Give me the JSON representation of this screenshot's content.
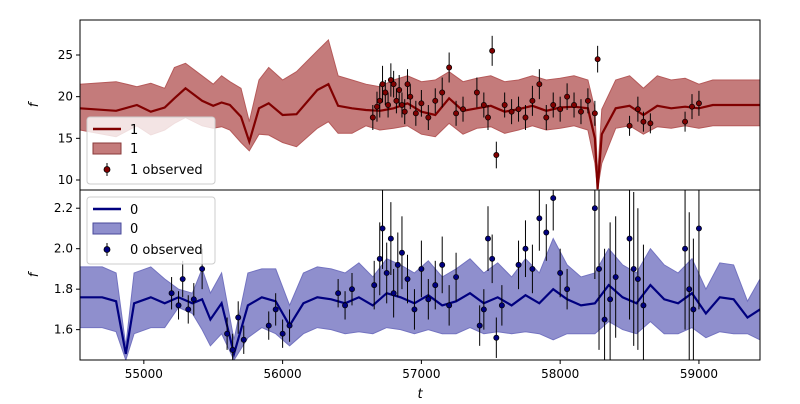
{
  "colors": {
    "series_top_line": "#800000",
    "series_top_band": "#b55a5a",
    "series_bottom_line": "#00007f",
    "series_bottom_band": "#7373c0",
    "errorbar": "#000000"
  },
  "chart_data": [
    {
      "type": "line",
      "panel": "top",
      "ylabel": "f",
      "xlim": [
        54540,
        59440
      ],
      "ylim": [
        8.8,
        29.2
      ],
      "yticks": [
        10,
        15,
        20,
        25
      ],
      "legend": {
        "placement": "lower-left",
        "entries": [
          {
            "label": "1",
            "kind": "line"
          },
          {
            "label": "1",
            "kind": "band"
          },
          {
            "label": "1 observed",
            "kind": "errorbar"
          }
        ]
      },
      "mean_line": {
        "x": [
          54540,
          54800,
          54950,
          55050,
          55150,
          55220,
          55300,
          55420,
          55500,
          55560,
          55620,
          55700,
          55760,
          55830,
          55900,
          56000,
          56100,
          56250,
          56330,
          56400,
          56500,
          56600,
          56700,
          56800,
          56900,
          57000,
          57100,
          57200,
          57300,
          57400,
          57500,
          57600,
          57700,
          57800,
          57900,
          58000,
          58100,
          58200,
          58250,
          58270,
          58300,
          58400,
          58500,
          58600,
          58700,
          58800,
          58900,
          59000,
          59100,
          59440
        ],
        "y": [
          18.6,
          18.3,
          19.0,
          18.2,
          18.7,
          19.8,
          21.0,
          19.5,
          18.9,
          19.3,
          19.0,
          17.6,
          14.6,
          18.6,
          19.2,
          17.8,
          17.9,
          20.8,
          21.5,
          18.9,
          18.6,
          18.4,
          18.3,
          18.6,
          19.2,
          18.2,
          17.8,
          19.8,
          18.3,
          18.6,
          18.9,
          18.2,
          18.5,
          18.9,
          18.3,
          18.7,
          18.8,
          18.6,
          15.0,
          8.9,
          15.5,
          18.6,
          18.9,
          17.8,
          18.9,
          18.6,
          18.8,
          18.6,
          19.0,
          19.0
        ]
      },
      "band": {
        "x": [
          54540,
          54800,
          54950,
          55050,
          55150,
          55220,
          55300,
          55420,
          55500,
          55560,
          55620,
          55700,
          55760,
          55830,
          55900,
          56000,
          56100,
          56250,
          56330,
          56400,
          56500,
          56600,
          56700,
          56800,
          56900,
          57000,
          57100,
          57200,
          57300,
          57400,
          57500,
          57600,
          57700,
          57800,
          57900,
          58000,
          58100,
          58200,
          58250,
          58270,
          58300,
          58400,
          58500,
          58600,
          58700,
          58800,
          58900,
          59000,
          59100,
          59440
        ],
        "upper": [
          21.5,
          21.8,
          21.2,
          21.6,
          21.0,
          23.5,
          24.0,
          22.5,
          21.5,
          22.5,
          21.8,
          21.0,
          17.0,
          22.0,
          23.5,
          22.0,
          23.0,
          25.5,
          26.8,
          22.5,
          22.0,
          21.5,
          21.2,
          22.0,
          22.5,
          21.8,
          22.0,
          23.0,
          21.8,
          22.2,
          22.5,
          21.8,
          22.0,
          22.5,
          22.0,
          22.2,
          22.5,
          22.0,
          18.5,
          10.5,
          18.5,
          22.0,
          22.5,
          21.0,
          22.5,
          22.0,
          22.2,
          21.5,
          22.0,
          22.0
        ],
        "lower": [
          16.0,
          15.2,
          16.5,
          15.4,
          16.0,
          16.8,
          17.5,
          16.5,
          16.2,
          16.4,
          16.0,
          14.5,
          13.5,
          15.5,
          15.4,
          14.5,
          14.0,
          16.2,
          17.0,
          15.6,
          15.6,
          16.5,
          16.0,
          16.2,
          16.5,
          15.5,
          15.2,
          16.8,
          15.5,
          16.2,
          16.4,
          15.6,
          16.0,
          16.5,
          16.0,
          16.2,
          16.5,
          16.0,
          12.0,
          8.9,
          12.0,
          16.2,
          16.5,
          15.5,
          16.4,
          16.2,
          16.5,
          16.2,
          16.5,
          16.5
        ]
      },
      "observed": {
        "x": [
          56650,
          56680,
          56700,
          56720,
          56740,
          56760,
          56780,
          56800,
          56820,
          56840,
          56860,
          56880,
          56900,
          56920,
          56960,
          57000,
          57050,
          57100,
          57150,
          57200,
          57250,
          57300,
          57400,
          57450,
          57480,
          57510,
          57540,
          57600,
          57650,
          57700,
          57750,
          57800,
          57850,
          57900,
          57950,
          58000,
          58050,
          58100,
          58150,
          58200,
          58250,
          58270,
          58500,
          58560,
          58600,
          58650,
          58900,
          58950,
          59000
        ],
        "y": [
          17.5,
          18.8,
          19.5,
          21.5,
          20.5,
          19.0,
          22.0,
          21.5,
          19.5,
          20.8,
          19.0,
          18.2,
          21.5,
          20.0,
          18.0,
          19.2,
          17.5,
          19.5,
          20.5,
          23.5,
          18.0,
          18.5,
          20.5,
          19.0,
          17.5,
          25.5,
          13.0,
          19.0,
          18.2,
          18.5,
          17.5,
          19.5,
          21.5,
          17.5,
          19.0,
          18.5,
          20.0,
          19.0,
          18.2,
          19.5,
          18.0,
          24.5,
          16.5,
          18.5,
          17.0,
          16.8,
          17.0,
          18.8,
          19.2
        ],
        "err": [
          1.5,
          1.8,
          2.0,
          2.2,
          1.5,
          1.5,
          2.0,
          1.6,
          1.5,
          1.8,
          1.5,
          1.5,
          1.8,
          1.5,
          1.5,
          1.6,
          1.5,
          1.5,
          1.8,
          1.8,
          1.5,
          1.5,
          1.8,
          1.5,
          1.5,
          1.8,
          1.6,
          1.5,
          1.5,
          1.5,
          1.5,
          1.8,
          1.8,
          1.5,
          1.5,
          1.5,
          1.6,
          1.5,
          1.5,
          1.5,
          1.5,
          1.6,
          1.2,
          1.5,
          1.2,
          1.2,
          1.2,
          1.5,
          1.5
        ]
      }
    },
    {
      "type": "line",
      "panel": "bottom",
      "xlabel": "t",
      "ylabel": "f",
      "xlim": [
        54540,
        59440
      ],
      "ylim": [
        1.45,
        2.29
      ],
      "yticks": [
        1.6,
        1.8,
        2.0,
        2.2
      ],
      "xticks": [
        55000,
        56000,
        57000,
        58000,
        59000
      ],
      "legend": {
        "placement": "upper-left",
        "entries": [
          {
            "label": "0",
            "kind": "line"
          },
          {
            "label": "0",
            "kind": "band"
          },
          {
            "label": "0 observed",
            "kind": "errorbar"
          }
        ]
      },
      "mean_line": {
        "x": [
          54540,
          54700,
          54800,
          54870,
          54930,
          55050,
          55150,
          55250,
          55350,
          55420,
          55480,
          55560,
          55650,
          55750,
          55850,
          55950,
          56050,
          56150,
          56250,
          56350,
          56450,
          56550,
          56650,
          56750,
          56850,
          56950,
          57050,
          57150,
          57250,
          57350,
          57450,
          57550,
          57650,
          57750,
          57850,
          57950,
          58050,
          58150,
          58250,
          58350,
          58450,
          58550,
          58650,
          58750,
          58850,
          58950,
          59050,
          59150,
          59250,
          59350,
          59440
        ],
        "y": [
          1.76,
          1.76,
          1.74,
          1.48,
          1.73,
          1.76,
          1.73,
          1.76,
          1.73,
          1.75,
          1.65,
          1.73,
          1.48,
          1.72,
          1.76,
          1.74,
          1.62,
          1.73,
          1.76,
          1.75,
          1.73,
          1.76,
          1.72,
          1.78,
          1.76,
          1.73,
          1.77,
          1.72,
          1.74,
          1.78,
          1.73,
          1.76,
          1.72,
          1.77,
          1.73,
          1.8,
          1.75,
          1.72,
          1.73,
          1.82,
          1.76,
          1.73,
          1.82,
          1.75,
          1.73,
          1.78,
          1.68,
          1.76,
          1.75,
          1.66,
          1.7
        ]
      },
      "band": {
        "x": [
          54540,
          54700,
          54800,
          54870,
          54930,
          55050,
          55150,
          55250,
          55350,
          55420,
          55480,
          55560,
          55650,
          55750,
          55850,
          55950,
          56050,
          56150,
          56250,
          56350,
          56450,
          56550,
          56650,
          56750,
          56850,
          56950,
          57050,
          57150,
          57250,
          57350,
          57450,
          57550,
          57650,
          57750,
          57850,
          57950,
          58050,
          58150,
          58250,
          58350,
          58450,
          58550,
          58650,
          58750,
          58850,
          58950,
          59050,
          59150,
          59250,
          59350,
          59440
        ],
        "upper": [
          1.91,
          1.91,
          1.88,
          1.52,
          1.88,
          1.91,
          1.85,
          1.8,
          1.78,
          1.9,
          1.78,
          1.88,
          1.55,
          1.88,
          1.9,
          1.9,
          1.72,
          1.88,
          1.91,
          1.9,
          1.88,
          1.93,
          1.86,
          1.95,
          1.92,
          1.88,
          1.94,
          1.86,
          1.9,
          1.95,
          1.88,
          1.93,
          1.86,
          1.95,
          1.88,
          2.05,
          1.92,
          1.86,
          1.88,
          2.0,
          1.92,
          1.88,
          2.0,
          1.92,
          1.88,
          1.95,
          1.8,
          1.93,
          1.92,
          1.74,
          1.85
        ],
        "lower": [
          1.61,
          1.61,
          1.59,
          1.45,
          1.58,
          1.61,
          1.61,
          1.71,
          1.68,
          1.6,
          1.52,
          1.58,
          1.45,
          1.56,
          1.61,
          1.58,
          1.52,
          1.58,
          1.61,
          1.6,
          1.58,
          1.59,
          1.58,
          1.61,
          1.6,
          1.58,
          1.6,
          1.58,
          1.58,
          1.61,
          1.58,
          1.59,
          1.58,
          1.59,
          1.58,
          1.55,
          1.58,
          1.58,
          1.58,
          1.64,
          1.6,
          1.58,
          1.64,
          1.58,
          1.58,
          1.61,
          1.56,
          1.59,
          1.58,
          1.58,
          1.55
        ]
      },
      "observed": {
        "x": [
          55200,
          55250,
          55280,
          55320,
          55360,
          55420,
          55600,
          55640,
          55680,
          55720,
          55900,
          55950,
          56000,
          56050,
          56400,
          56450,
          56500,
          56660,
          56700,
          56720,
          56750,
          56780,
          56800,
          56830,
          56860,
          56900,
          56950,
          57000,
          57050,
          57100,
          57150,
          57200,
          57250,
          57420,
          57450,
          57480,
          57510,
          57540,
          57580,
          57700,
          57750,
          57800,
          57850,
          57900,
          57950,
          58000,
          58050,
          58250,
          58280,
          58320,
          58360,
          58400,
          58500,
          58530,
          58560,
          58600,
          58900,
          58930,
          58960,
          59000
        ],
        "y": [
          1.78,
          1.72,
          1.85,
          1.7,
          1.75,
          1.9,
          1.58,
          1.5,
          1.66,
          1.55,
          1.62,
          1.7,
          1.58,
          1.62,
          1.78,
          1.72,
          1.8,
          1.82,
          1.95,
          2.1,
          1.88,
          2.05,
          1.78,
          1.92,
          1.98,
          1.85,
          1.7,
          1.9,
          1.75,
          1.82,
          1.92,
          1.72,
          1.86,
          1.62,
          1.7,
          2.05,
          1.95,
          1.56,
          1.72,
          1.92,
          2.0,
          1.9,
          2.15,
          2.08,
          2.25,
          1.88,
          1.8,
          2.2,
          1.9,
          1.65,
          1.75,
          1.86,
          2.05,
          1.9,
          1.85,
          1.72,
          2.0,
          1.8,
          1.7,
          2.1
        ],
        "err": [
          0.08,
          0.07,
          0.09,
          0.07,
          0.08,
          0.1,
          0.08,
          0.08,
          0.08,
          0.07,
          0.07,
          0.08,
          0.07,
          0.08,
          0.07,
          0.07,
          0.08,
          0.12,
          0.18,
          0.2,
          0.15,
          0.18,
          0.12,
          0.16,
          0.18,
          0.12,
          0.1,
          0.14,
          0.1,
          0.12,
          0.14,
          0.1,
          0.12,
          0.1,
          0.1,
          0.16,
          0.12,
          0.1,
          0.1,
          0.12,
          0.14,
          0.12,
          0.16,
          0.14,
          0.16,
          0.12,
          0.1,
          0.35,
          0.4,
          0.35,
          0.38,
          0.3,
          0.4,
          0.38,
          0.35,
          0.3,
          0.4,
          0.38,
          0.35,
          0.4
        ]
      }
    }
  ]
}
